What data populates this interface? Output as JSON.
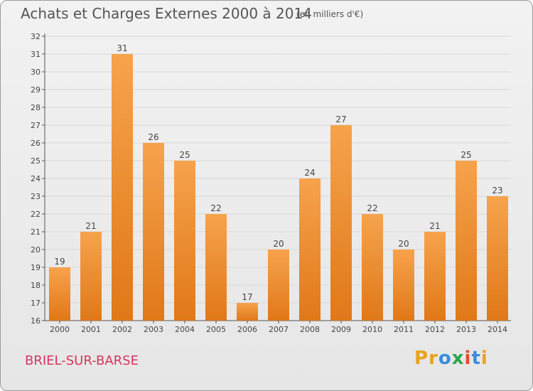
{
  "header": {
    "title": "Achats et Charges Externes 2000 à 2014",
    "subtitle": "(en milliers d'€)"
  },
  "footer": {
    "location": "BRIEL-SUR-BARSE",
    "logo_text": "Proxiti",
    "logo_colors": [
      "#e8a21d",
      "#e8a21d",
      "#3a8dde",
      "#2aa64a",
      "#e34a2f",
      "#3a8dde",
      "#e8a21d"
    ]
  },
  "colors": {
    "bar_light": "#f6a34c",
    "bar_dark": "#e07818",
    "grid": "#d8d8d8",
    "axis": "#555555"
  },
  "chart_data": {
    "type": "bar",
    "title": "Achats et Charges Externes 2000 à 2014",
    "categories": [
      "2000",
      "2001",
      "2002",
      "2003",
      "2004",
      "2005",
      "2006",
      "2007",
      "2008",
      "2009",
      "2010",
      "2011",
      "2012",
      "2013",
      "2014"
    ],
    "values": [
      19,
      21,
      31,
      26,
      25,
      22,
      17,
      20,
      24,
      27,
      22,
      20,
      21,
      25,
      23
    ],
    "ylim": [
      16,
      32
    ],
    "yticks": [
      16,
      17,
      18,
      19,
      20,
      21,
      22,
      23,
      24,
      25,
      26,
      27,
      28,
      29,
      30,
      31,
      32
    ],
    "grid": true,
    "legend": "none"
  }
}
